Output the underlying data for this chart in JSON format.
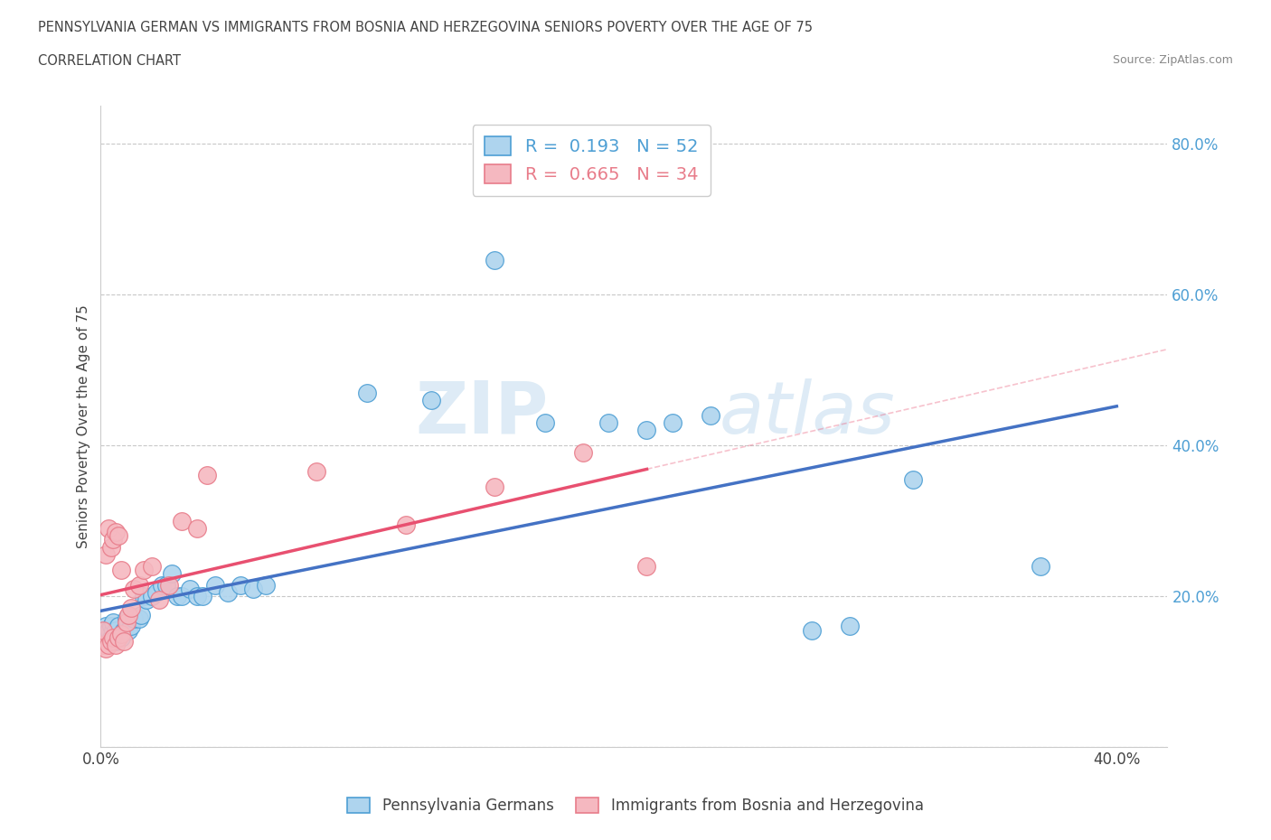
{
  "title_line1": "PENNSYLVANIA GERMAN VS IMMIGRANTS FROM BOSNIA AND HERZEGOVINA SENIORS POVERTY OVER THE AGE OF 75",
  "title_line2": "CORRELATION CHART",
  "source_text": "Source: ZipAtlas.com",
  "ylabel": "Seniors Poverty Over the Age of 75",
  "xlim": [
    0.0,
    0.42
  ],
  "ylim": [
    0.0,
    0.85
  ],
  "x_ticks": [
    0.0,
    0.05,
    0.1,
    0.15,
    0.2,
    0.25,
    0.3,
    0.35,
    0.4
  ],
  "y_ticks": [
    0.0,
    0.2,
    0.4,
    0.6,
    0.8
  ],
  "blue_color": "#4e9fd4",
  "blue_fill": "#aed4ee",
  "pink_color": "#e87c8a",
  "pink_fill": "#f5b8c0",
  "trend_blue_color": "#4472c4",
  "trend_pink_color": "#e85070",
  "legend_blue_R": "0.193",
  "legend_blue_N": "52",
  "legend_pink_R": "0.665",
  "legend_pink_N": "34",
  "watermark_zip": "ZIP",
  "watermark_atlas": "atlas",
  "grid_color": "#c8c8c8",
  "blue_scatter_x": [
    0.001,
    0.002,
    0.002,
    0.003,
    0.003,
    0.004,
    0.004,
    0.005,
    0.005,
    0.005,
    0.006,
    0.006,
    0.007,
    0.007,
    0.008,
    0.009,
    0.01,
    0.01,
    0.011,
    0.012,
    0.013,
    0.015,
    0.016,
    0.017,
    0.018,
    0.02,
    0.022,
    0.024,
    0.026,
    0.028,
    0.03,
    0.032,
    0.035,
    0.038,
    0.04,
    0.045,
    0.05,
    0.055,
    0.06,
    0.065,
    0.105,
    0.13,
    0.155,
    0.175,
    0.2,
    0.215,
    0.225,
    0.24,
    0.28,
    0.295,
    0.32,
    0.37
  ],
  "blue_scatter_y": [
    0.155,
    0.145,
    0.16,
    0.14,
    0.155,
    0.145,
    0.16,
    0.14,
    0.155,
    0.165,
    0.14,
    0.155,
    0.145,
    0.16,
    0.145,
    0.155,
    0.16,
    0.17,
    0.155,
    0.16,
    0.17,
    0.17,
    0.175,
    0.2,
    0.195,
    0.2,
    0.205,
    0.215,
    0.215,
    0.23,
    0.2,
    0.2,
    0.21,
    0.2,
    0.2,
    0.215,
    0.205,
    0.215,
    0.21,
    0.215,
    0.47,
    0.46,
    0.645,
    0.43,
    0.43,
    0.42,
    0.43,
    0.44,
    0.155,
    0.16,
    0.355,
    0.24
  ],
  "pink_scatter_x": [
    0.001,
    0.001,
    0.002,
    0.002,
    0.003,
    0.003,
    0.004,
    0.004,
    0.005,
    0.005,
    0.006,
    0.006,
    0.007,
    0.007,
    0.008,
    0.008,
    0.009,
    0.01,
    0.011,
    0.012,
    0.013,
    0.015,
    0.017,
    0.02,
    0.023,
    0.027,
    0.032,
    0.038,
    0.042,
    0.085,
    0.12,
    0.155,
    0.19,
    0.215
  ],
  "pink_scatter_y": [
    0.135,
    0.155,
    0.13,
    0.255,
    0.135,
    0.29,
    0.14,
    0.265,
    0.145,
    0.275,
    0.135,
    0.285,
    0.145,
    0.28,
    0.15,
    0.235,
    0.14,
    0.165,
    0.175,
    0.185,
    0.21,
    0.215,
    0.235,
    0.24,
    0.195,
    0.215,
    0.3,
    0.29,
    0.36,
    0.365,
    0.295,
    0.345,
    0.39,
    0.24
  ]
}
